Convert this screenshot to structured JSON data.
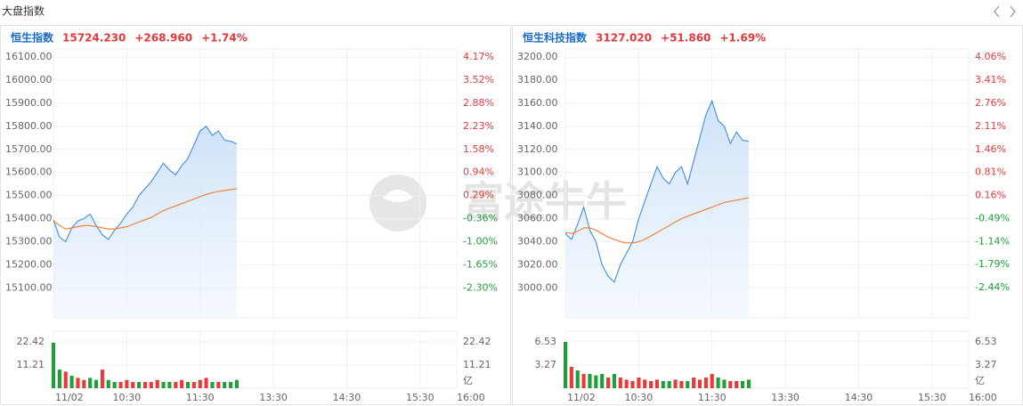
{
  "header": {
    "title": "大盘指数"
  },
  "watermark": "富途牛牛",
  "chart_data": [
    {
      "type": "line",
      "title": "恒生指数",
      "last": "15724.230",
      "change": "+268.960",
      "change_pct": "+1.74%",
      "up_color": "#e83a3a",
      "down_color": "#1f9e3a",
      "x": [
        0,
        5,
        10,
        15,
        20,
        25,
        30,
        35,
        40,
        45,
        50,
        55,
        60,
        65,
        70,
        75,
        80,
        85,
        90,
        95,
        100,
        105,
        110,
        115,
        120,
        125,
        130,
        135,
        140,
        145,
        150
      ],
      "xlim": [
        0,
        330
      ],
      "xticks": [
        {
          "value": 0,
          "label": "11/02"
        },
        {
          "value": 60,
          "label": "10:30"
        },
        {
          "value": 120,
          "label": "11:30"
        },
        {
          "value": 180,
          "label": "13:30"
        },
        {
          "value": 240,
          "label": "14:30"
        },
        {
          "value": 300,
          "label": "15:30"
        },
        {
          "value": 330,
          "label": "16:00"
        }
      ],
      "ylim": [
        14970,
        16135
      ],
      "yticks": [
        {
          "value": 16100,
          "label": "16100.00"
        },
        {
          "value": 16000,
          "label": "16000.00"
        },
        {
          "value": 15900,
          "label": "15900.00"
        },
        {
          "value": 15800,
          "label": "15800.00"
        },
        {
          "value": 15700,
          "label": "15700.00"
        },
        {
          "value": 15600,
          "label": "15600.00"
        },
        {
          "value": 15500,
          "label": "15500.00"
        },
        {
          "value": 15400,
          "label": "15400.00"
        },
        {
          "value": 15300,
          "label": "15300.00"
        },
        {
          "value": 15200,
          "label": "15200.00"
        },
        {
          "value": 15100,
          "label": "15100.00"
        }
      ],
      "y2lim": [
        -3.14,
        4.4
      ],
      "y2ticks": [
        {
          "value": 4.17,
          "label": "4.17%"
        },
        {
          "value": 3.52,
          "label": "3.52%"
        },
        {
          "value": 2.88,
          "label": "2.88%"
        },
        {
          "value": 2.23,
          "label": "2.23%"
        },
        {
          "value": 1.58,
          "label": "1.58%"
        },
        {
          "value": 0.94,
          "label": "0.94%"
        },
        {
          "value": 0.29,
          "label": "0.29%"
        },
        {
          "value": -0.36,
          "label": "-0.36%"
        },
        {
          "value": -1.0,
          "label": "-1.00%"
        },
        {
          "value": -1.65,
          "label": "-1.65%"
        },
        {
          "value": -2.3,
          "label": "-2.30%"
        }
      ],
      "grid": true,
      "series": [
        {
          "color": "#3d8ee8",
          "area": true,
          "values": [
            15395,
            15320,
            15300,
            15360,
            15390,
            15400,
            15420,
            15370,
            15330,
            15310,
            15350,
            15380,
            15420,
            15450,
            15500,
            15530,
            15560,
            15600,
            15640,
            15610,
            15590,
            15630,
            15660,
            15720,
            15780,
            15800,
            15760,
            15780,
            15740,
            15735,
            15724
          ]
        },
        {
          "color": "#f07c2a",
          "values": [
            15390,
            15370,
            15355,
            15360,
            15365,
            15370,
            15370,
            15365,
            15360,
            15355,
            15355,
            15360,
            15365,
            15375,
            15385,
            15395,
            15405,
            15420,
            15435,
            15445,
            15455,
            15465,
            15475,
            15485,
            15495,
            15505,
            15512,
            15518,
            15522,
            15526,
            15530
          ]
        }
      ],
      "volume": {
        "ylim": [
          0,
          27.6
        ],
        "yticks": [
          22.42,
          11.21
        ],
        "unit": "亿",
        "values": [
          22,
          9,
          8,
          6,
          5,
          4,
          5,
          4,
          9,
          4,
          3,
          3,
          4,
          3,
          3,
          3,
          3,
          4,
          3,
          3,
          3,
          4,
          3,
          3,
          4,
          5,
          3,
          3,
          3,
          3,
          4
        ],
        "colors": [
          "#1f9e3a",
          "#1f9e3a",
          "#e83a3a",
          "#1f9e3a",
          "#e83a3a",
          "#e83a3a",
          "#1f9e3a",
          "#1f9e3a",
          "#e83a3a",
          "#1f9e3a",
          "#1f9e3a",
          "#e83a3a",
          "#e83a3a",
          "#e83a3a",
          "#1f9e3a",
          "#e83a3a",
          "#e83a3a",
          "#e83a3a",
          "#1f9e3a",
          "#1f9e3a",
          "#e83a3a",
          "#e83a3a",
          "#1f9e3a",
          "#e83a3a",
          "#e83a3a",
          "#e83a3a",
          "#1f9e3a",
          "#e83a3a",
          "#1f9e3a",
          "#1f9e3a",
          "#1f9e3a"
        ]
      }
    },
    {
      "type": "line",
      "title": "恒生科技指数",
      "last": "3127.020",
      "change": "+51.860",
      "change_pct": "+1.69%",
      "up_color": "#e83a3a",
      "down_color": "#1f9e3a",
      "x": [
        0,
        5,
        10,
        15,
        20,
        25,
        30,
        35,
        40,
        45,
        50,
        55,
        60,
        65,
        70,
        75,
        80,
        85,
        90,
        95,
        100,
        105,
        110,
        115,
        120,
        125,
        130,
        135,
        140,
        145,
        150
      ],
      "xlim": [
        0,
        330
      ],
      "xticks": [
        {
          "value": 0,
          "label": "11/02"
        },
        {
          "value": 60,
          "label": "10:30"
        },
        {
          "value": 120,
          "label": "11:30"
        },
        {
          "value": 180,
          "label": "13:30"
        },
        {
          "value": 240,
          "label": "14:30"
        },
        {
          "value": 300,
          "label": "15:30"
        },
        {
          "value": 330,
          "label": "16:00"
        }
      ],
      "ylim": [
        2974,
        3207
      ],
      "yticks": [
        {
          "value": 3200,
          "label": "3200.00"
        },
        {
          "value": 3180,
          "label": "3180.00"
        },
        {
          "value": 3160,
          "label": "3160.00"
        },
        {
          "value": 3140,
          "label": "3140.00"
        },
        {
          "value": 3120,
          "label": "3120.00"
        },
        {
          "value": 3100,
          "label": "3100.00"
        },
        {
          "value": 3080,
          "label": "3080.00"
        },
        {
          "value": 3060,
          "label": "3060.00"
        },
        {
          "value": 3040,
          "label": "3040.00"
        },
        {
          "value": 3020,
          "label": "3020.00"
        },
        {
          "value": 3000,
          "label": "3000.00"
        }
      ],
      "y2lim": [
        -3.29,
        4.29
      ],
      "y2ticks": [
        {
          "value": 4.06,
          "label": "4.06%"
        },
        {
          "value": 3.41,
          "label": "3.41%"
        },
        {
          "value": 2.76,
          "label": "2.76%"
        },
        {
          "value": 2.11,
          "label": "2.11%"
        },
        {
          "value": 1.46,
          "label": "1.46%"
        },
        {
          "value": 0.81,
          "label": "0.81%"
        },
        {
          "value": 0.16,
          "label": "0.16%"
        },
        {
          "value": -0.49,
          "label": "-0.49%"
        },
        {
          "value": -1.14,
          "label": "-1.14%"
        },
        {
          "value": -1.79,
          "label": "-1.79%"
        },
        {
          "value": -2.44,
          "label": "-2.44%"
        }
      ],
      "grid": true,
      "series": [
        {
          "color": "#3d8ee8",
          "area": true,
          "values": [
            3047,
            3042,
            3055,
            3070,
            3050,
            3040,
            3020,
            3010,
            3005,
            3020,
            3030,
            3040,
            3060,
            3075,
            3090,
            3105,
            3095,
            3090,
            3100,
            3105,
            3090,
            3110,
            3130,
            3150,
            3162,
            3145,
            3140,
            3125,
            3135,
            3128,
            3127
          ]
        },
        {
          "color": "#f07c2a",
          "values": [
            3048,
            3047,
            3049,
            3052,
            3052,
            3050,
            3047,
            3044,
            3042,
            3040,
            3039,
            3039,
            3040,
            3042,
            3045,
            3048,
            3051,
            3054,
            3057,
            3060,
            3062,
            3064,
            3066,
            3068,
            3070,
            3072,
            3074,
            3075,
            3076,
            3077,
            3078
          ]
        }
      ],
      "volume": {
        "ylim": [
          0,
          8.0
        ],
        "yticks": [
          6.53,
          3.27
        ],
        "unit": "亿",
        "values": [
          6.5,
          3,
          2.5,
          2,
          2,
          1.8,
          2,
          1.5,
          2,
          1.5,
          1.2,
          1,
          1.5,
          1.2,
          1,
          1.2,
          1,
          1,
          1.2,
          1,
          1,
          1.5,
          1.2,
          1.5,
          2,
          1.5,
          1.2,
          1,
          1,
          1,
          1.2
        ],
        "colors": [
          "#1f9e3a",
          "#e83a3a",
          "#1f9e3a",
          "#e83a3a",
          "#1f9e3a",
          "#1f9e3a",
          "#1f9e3a",
          "#e83a3a",
          "#1f9e3a",
          "#e83a3a",
          "#e83a3a",
          "#e83a3a",
          "#e83a3a",
          "#e83a3a",
          "#e83a3a",
          "#e83a3a",
          "#1f9e3a",
          "#1f9e3a",
          "#e83a3a",
          "#e83a3a",
          "#1f9e3a",
          "#e83a3a",
          "#e83a3a",
          "#e83a3a",
          "#e83a3a",
          "#1f9e3a",
          "#1f9e3a",
          "#e83a3a",
          "#e83a3a",
          "#1f9e3a",
          "#1f9e3a"
        ]
      }
    }
  ]
}
